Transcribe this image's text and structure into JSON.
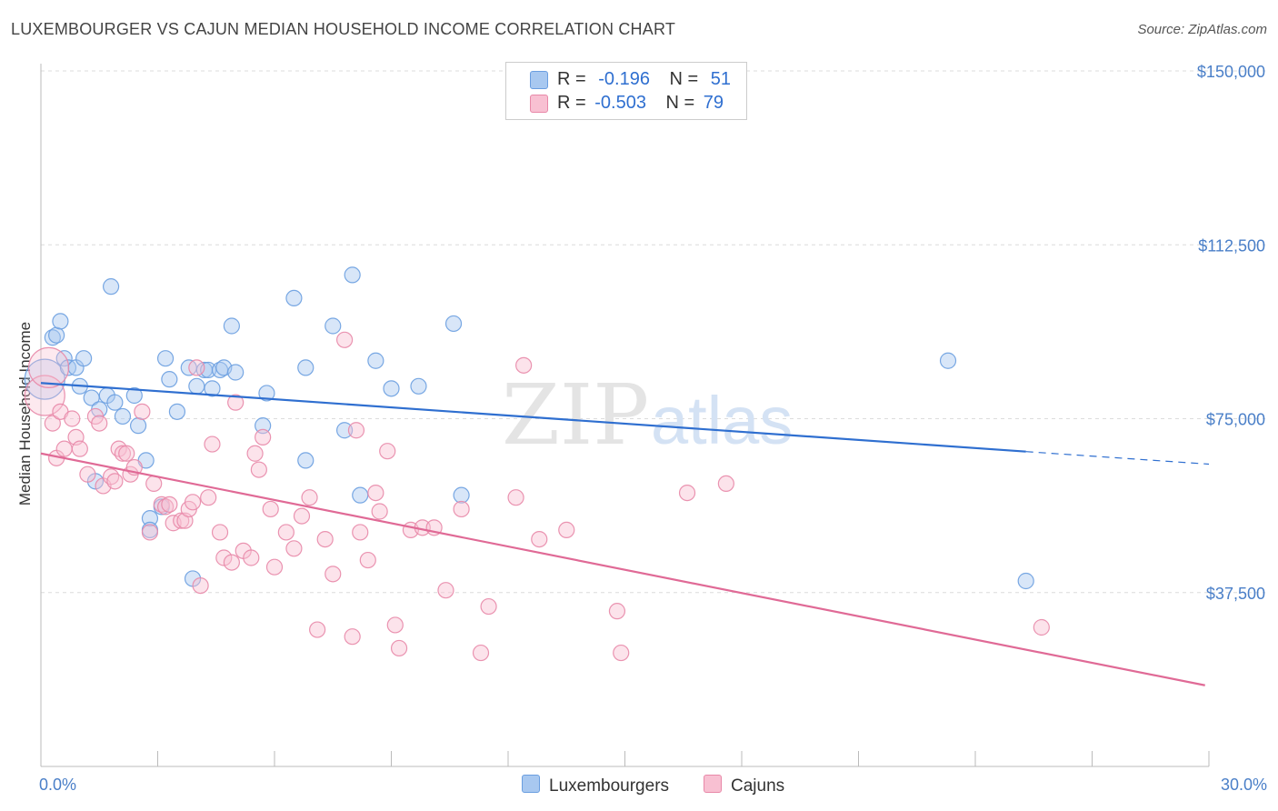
{
  "title": "LUXEMBOURGER VS CAJUN MEDIAN HOUSEHOLD INCOME CORRELATION CHART",
  "source": "Source: ZipAtlas.com",
  "watermark": {
    "zip": "ZIP",
    "atlas": "atlas"
  },
  "stats": [
    {
      "r_label": "R = ",
      "r_value": "-0.196",
      "n_label": "N = ",
      "n_value": "51",
      "color": "#a8c8f0",
      "border": "#6a9ee0"
    },
    {
      "r_label": "R = ",
      "r_value": "-0.503",
      "n_label": "N = ",
      "n_value": "79",
      "color": "#f8c0d2",
      "border": "#e888a8"
    }
  ],
  "legend": [
    {
      "label": "Luxembourgers",
      "color": "#a8c8f0",
      "border": "#6a9ee0"
    },
    {
      "label": "Cajuns",
      "color": "#f8c0d2",
      "border": "#e888a8"
    }
  ],
  "chart_data": {
    "type": "scatter",
    "title": "LUXEMBOURGER VS CAJUN MEDIAN HOUSEHOLD INCOME CORRELATION CHART",
    "xlabel": "",
    "ylabel": "Median Household Income",
    "xlim": [
      0,
      30
    ],
    "ylim": [
      0,
      157000
    ],
    "x_tick_labels": [
      "0.0%",
      "30.0%"
    ],
    "y_ticks": [
      37500,
      75000,
      112500,
      150000
    ],
    "y_tick_labels": [
      "$37,500",
      "$75,000",
      "$112,500",
      "$150,000"
    ],
    "grid": "horizontal dashed",
    "legend_position": "bottom-center",
    "series": [
      {
        "name": "Luxembourgers",
        "color": "#6a9ee0",
        "fill": "#a8c8f0",
        "trend": {
          "x": [
            0,
            25.3
          ],
          "y": [
            82700,
            67900
          ],
          "dashed_to": [
            30,
            65200
          ],
          "color": "#2f6fd0"
        },
        "points": [
          [
            0.1,
            83500
          ],
          [
            0.3,
            92500
          ],
          [
            0.4,
            93000
          ],
          [
            0.5,
            96000
          ],
          [
            0.6,
            88000
          ],
          [
            0.7,
            86000
          ],
          [
            0.9,
            86000
          ],
          [
            1.0,
            82000
          ],
          [
            1.1,
            88000
          ],
          [
            1.3,
            79500
          ],
          [
            1.4,
            61500
          ],
          [
            1.5,
            77000
          ],
          [
            1.7,
            80000
          ],
          [
            1.8,
            103500
          ],
          [
            1.9,
            78500
          ],
          [
            2.1,
            75500
          ],
          [
            2.4,
            80000
          ],
          [
            2.5,
            73500
          ],
          [
            2.7,
            66000
          ],
          [
            2.8,
            53500
          ],
          [
            2.8,
            51000
          ],
          [
            3.1,
            56000
          ],
          [
            3.2,
            88000
          ],
          [
            3.3,
            83500
          ],
          [
            3.5,
            76500
          ],
          [
            3.8,
            86000
          ],
          [
            3.9,
            40500
          ],
          [
            4.0,
            82000
          ],
          [
            4.2,
            85500
          ],
          [
            4.3,
            85500
          ],
          [
            4.4,
            81500
          ],
          [
            4.6,
            85500
          ],
          [
            4.7,
            86000
          ],
          [
            4.9,
            95000
          ],
          [
            5.0,
            85000
          ],
          [
            5.8,
            80500
          ],
          [
            5.7,
            73500
          ],
          [
            6.5,
            101000
          ],
          [
            6.8,
            86000
          ],
          [
            6.8,
            66000
          ],
          [
            7.5,
            95000
          ],
          [
            7.8,
            72500
          ],
          [
            8.0,
            106000
          ],
          [
            8.2,
            58500
          ],
          [
            8.6,
            87500
          ],
          [
            9.0,
            81500
          ],
          [
            9.7,
            82000
          ],
          [
            10.6,
            95500
          ],
          [
            10.8,
            58500
          ],
          [
            23.3,
            87500
          ],
          [
            25.3,
            40000
          ]
        ]
      },
      {
        "name": "Cajuns",
        "color": "#e888a8",
        "fill": "#f8c0d2",
        "trend": {
          "x": [
            0,
            29.9
          ],
          "y": [
            67500,
            17500
          ],
          "color": "#e06a96"
        },
        "points": [
          [
            0.1,
            80000
          ],
          [
            0.2,
            86000
          ],
          [
            0.3,
            74000
          ],
          [
            0.4,
            66500
          ],
          [
            0.5,
            76500
          ],
          [
            0.6,
            68500
          ],
          [
            0.8,
            75000
          ],
          [
            0.9,
            71000
          ],
          [
            1.0,
            68500
          ],
          [
            1.2,
            63000
          ],
          [
            1.4,
            75500
          ],
          [
            1.5,
            74000
          ],
          [
            1.6,
            60500
          ],
          [
            1.8,
            62500
          ],
          [
            1.9,
            61500
          ],
          [
            2.0,
            68500
          ],
          [
            2.1,
            67500
          ],
          [
            2.2,
            67500
          ],
          [
            2.3,
            63000
          ],
          [
            2.4,
            64500
          ],
          [
            2.6,
            76500
          ],
          [
            2.8,
            50500
          ],
          [
            2.9,
            61000
          ],
          [
            3.1,
            56500
          ],
          [
            3.2,
            56000
          ],
          [
            3.3,
            56500
          ],
          [
            3.4,
            52500
          ],
          [
            3.6,
            53000
          ],
          [
            3.7,
            53000
          ],
          [
            3.8,
            55500
          ],
          [
            3.9,
            57000
          ],
          [
            4.0,
            86000
          ],
          [
            4.1,
            39000
          ],
          [
            4.3,
            58000
          ],
          [
            4.4,
            69500
          ],
          [
            4.6,
            50500
          ],
          [
            4.7,
            45000
          ],
          [
            4.9,
            44000
          ],
          [
            5.0,
            78500
          ],
          [
            5.2,
            46500
          ],
          [
            5.4,
            45000
          ],
          [
            5.5,
            67500
          ],
          [
            5.6,
            64000
          ],
          [
            5.7,
            71000
          ],
          [
            5.9,
            55500
          ],
          [
            6.0,
            43000
          ],
          [
            6.3,
            50500
          ],
          [
            6.5,
            47000
          ],
          [
            6.7,
            54000
          ],
          [
            6.9,
            58000
          ],
          [
            7.1,
            29500
          ],
          [
            7.3,
            49000
          ],
          [
            7.5,
            41500
          ],
          [
            7.8,
            92000
          ],
          [
            8.0,
            28000
          ],
          [
            8.1,
            72500
          ],
          [
            8.2,
            50500
          ],
          [
            8.4,
            44500
          ],
          [
            8.6,
            59000
          ],
          [
            8.7,
            55000
          ],
          [
            8.9,
            68000
          ],
          [
            9.1,
            30500
          ],
          [
            9.2,
            25500
          ],
          [
            9.5,
            51000
          ],
          [
            9.8,
            51500
          ],
          [
            10.1,
            51500
          ],
          [
            10.4,
            38000
          ],
          [
            10.8,
            55500
          ],
          [
            11.3,
            24500
          ],
          [
            11.5,
            34500
          ],
          [
            12.2,
            58000
          ],
          [
            12.4,
            86500
          ],
          [
            12.8,
            49000
          ],
          [
            13.5,
            51000
          ],
          [
            14.8,
            33500
          ],
          [
            14.9,
            24500
          ],
          [
            16.6,
            59000
          ],
          [
            17.6,
            61000
          ],
          [
            25.7,
            30000
          ]
        ]
      }
    ]
  }
}
